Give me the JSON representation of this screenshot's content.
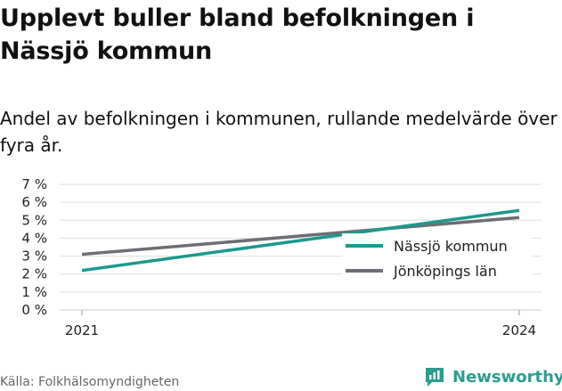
{
  "header": {
    "title": "Upplevt buller bland befolkningen i Nässjö kommun",
    "subtitle": "Andel av befolkningen i kommunen, rullande medelvärde över fyra år."
  },
  "footer": {
    "source": "Källa: Folkhälsomyndigheten",
    "brand": "Newsworthy",
    "brand_icon": "newsworthy-logo-icon"
  },
  "colors": {
    "nassjo": "#1a9a8c",
    "lan": "#6d6d73",
    "grid": "#dddddd",
    "brand": "#2a9d8f"
  },
  "chart_data": {
    "type": "line",
    "x": [
      "2021",
      "2024"
    ],
    "ylim": [
      0,
      7
    ],
    "yticks": [
      "0 %",
      "1 %",
      "2 %",
      "3 %",
      "4 %",
      "5 %",
      "6 %",
      "7 %"
    ],
    "xticks": [
      "2021",
      "2024"
    ],
    "grid": true,
    "legend_position": "bottom-right",
    "series": [
      {
        "name": "Nässjö kommun",
        "values": [
          2.2,
          5.55
        ],
        "color": "#1a9a8c"
      },
      {
        "name": "Jönköpings län",
        "values": [
          3.1,
          5.15
        ],
        "color": "#6d6d73"
      }
    ]
  }
}
